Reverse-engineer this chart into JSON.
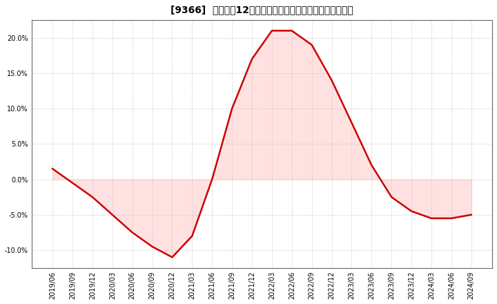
{
  "title": "[9366]  売上高の12か月移動合計の対前年同期増減率の推移",
  "x_labels": [
    "2019/06",
    "2019/09",
    "2019/12",
    "2020/03",
    "2020/06",
    "2020/09",
    "2020/12",
    "2021/03",
    "2021/06",
    "2021/09",
    "2021/12",
    "2022/03",
    "2022/06",
    "2022/09",
    "2022/12",
    "2023/03",
    "2023/06",
    "2023/09",
    "2023/12",
    "2024/03",
    "2024/06",
    "2024/09"
  ],
  "y_values": [
    1.5,
    -0.5,
    -2.5,
    -5.0,
    -7.5,
    -9.5,
    -11.0,
    -8.0,
    0.0,
    10.0,
    17.0,
    21.0,
    21.0,
    19.0,
    14.0,
    8.0,
    2.0,
    -2.5,
    -4.5,
    -5.5,
    -5.5,
    -5.0
  ],
  "line_color": "#cc0000",
  "fill_color": "#ffaaaa",
  "background_color": "#ffffff",
  "grid_color": "#aaaaaa",
  "spine_color": "#666666",
  "title_fontsize": 10,
  "tick_fontsize": 7,
  "ylim": [
    -12.5,
    22.5
  ],
  "yticks": [
    -10.0,
    -5.0,
    0.0,
    5.0,
    10.0,
    15.0,
    20.0
  ]
}
